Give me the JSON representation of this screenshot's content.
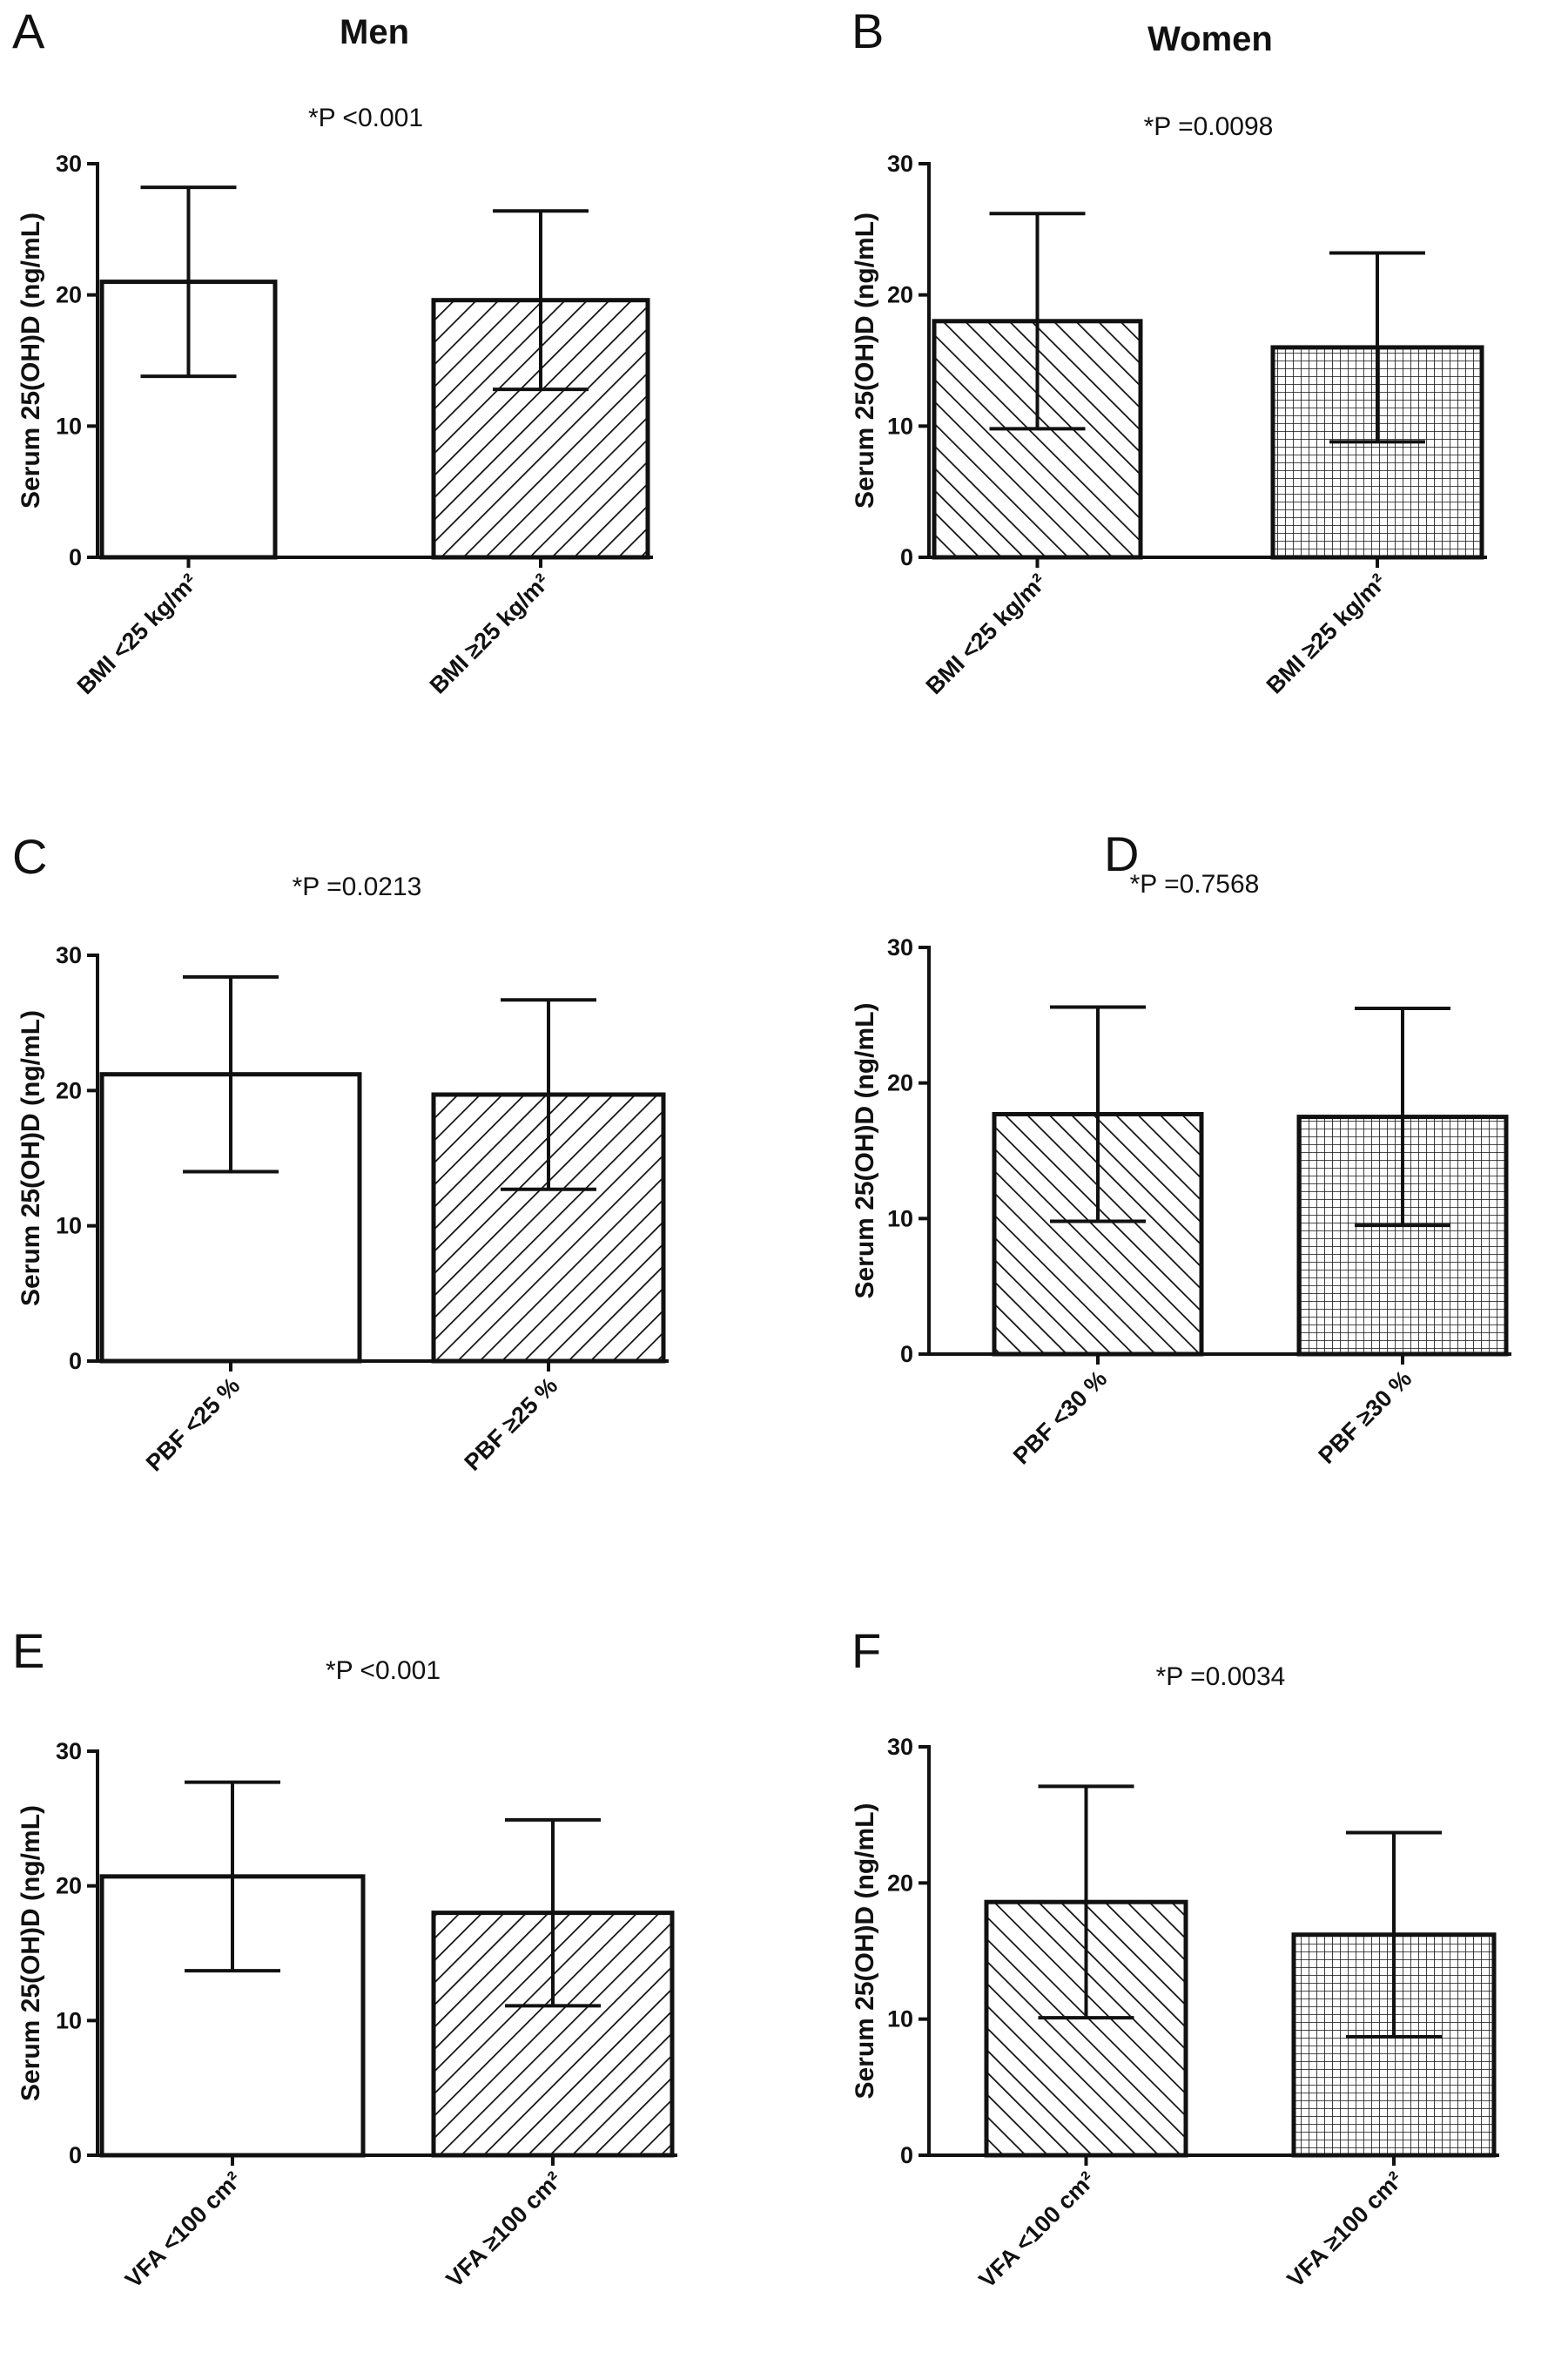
{
  "column_titles": {
    "left": "Men",
    "right": "Women"
  },
  "colors": {
    "ink": "#111111",
    "background": "#ffffff"
  },
  "chart_data": [
    {
      "panel": "A",
      "type": "bar",
      "group": "Men",
      "p_label": "*P <0.001",
      "ylabel": "Serum 25(OH)D (ng/mL)",
      "ylim": [
        0,
        30
      ],
      "yticks": [
        0,
        10,
        20,
        30
      ],
      "categories": [
        "BMI <25 kg/m²",
        "BMI ≥25 kg/m²"
      ],
      "values": [
        21.0,
        19.6
      ],
      "errors": [
        7.2,
        6.8
      ],
      "fills": [
        "none",
        "hatch-diag-right"
      ]
    },
    {
      "panel": "B",
      "type": "bar",
      "group": "Women",
      "p_label": "*P =0.0098",
      "ylabel": "Serum 25(OH)D (ng/mL)",
      "ylim": [
        0,
        30
      ],
      "yticks": [
        0,
        10,
        20,
        30
      ],
      "categories": [
        "BMI <25 kg/m²",
        "BMI ≥25 kg/m²"
      ],
      "values": [
        18.0,
        16.0
      ],
      "errors": [
        8.2,
        7.2
      ],
      "fills": [
        "hatch-diag-left",
        "grid"
      ]
    },
    {
      "panel": "C",
      "type": "bar",
      "group": "Men",
      "p_label": "*P =0.0213",
      "ylabel": "Serum 25(OH)D (ng/mL)",
      "ylim": [
        0,
        30
      ],
      "yticks": [
        0,
        10,
        20,
        30
      ],
      "categories": [
        "PBF <25 %",
        "PBF ≥25 %"
      ],
      "values": [
        21.2,
        19.7
      ],
      "errors": [
        7.2,
        7.0
      ],
      "fills": [
        "none",
        "hatch-diag-right"
      ]
    },
    {
      "panel": "D",
      "type": "bar",
      "group": "Women",
      "p_label": "*P =0.7568",
      "ylabel": "Serum 25(OH)D (ng/mL)",
      "ylim": [
        0,
        30
      ],
      "yticks": [
        0,
        10,
        20,
        30
      ],
      "categories": [
        "PBF <30 %",
        "PBF ≥30 %"
      ],
      "values": [
        17.7,
        17.5
      ],
      "errors": [
        7.9,
        8.0
      ],
      "fills": [
        "hatch-diag-left",
        "grid"
      ]
    },
    {
      "panel": "E",
      "type": "bar",
      "group": "Men",
      "p_label": "*P <0.001",
      "ylabel": "Serum 25(OH)D (ng/mL)",
      "ylim": [
        0,
        30
      ],
      "yticks": [
        0,
        10,
        20,
        30
      ],
      "categories": [
        "VFA <100 cm²",
        "VFA ≥100 cm²"
      ],
      "values": [
        20.7,
        18.0
      ],
      "errors": [
        7.0,
        6.9
      ],
      "fills": [
        "none",
        "hatch-diag-right"
      ]
    },
    {
      "panel": "F",
      "type": "bar",
      "group": "Women",
      "p_label": "*P =0.0034",
      "ylabel": "Serum 25(OH)D (ng/mL)",
      "ylim": [
        0,
        30
      ],
      "yticks": [
        0,
        10,
        20,
        30
      ],
      "categories": [
        "VFA <100 cm²",
        "VFA ≥100 cm²"
      ],
      "values": [
        18.6,
        16.2
      ],
      "errors": [
        8.5,
        7.5
      ],
      "fills": [
        "hatch-diag-left",
        "grid"
      ]
    }
  ]
}
